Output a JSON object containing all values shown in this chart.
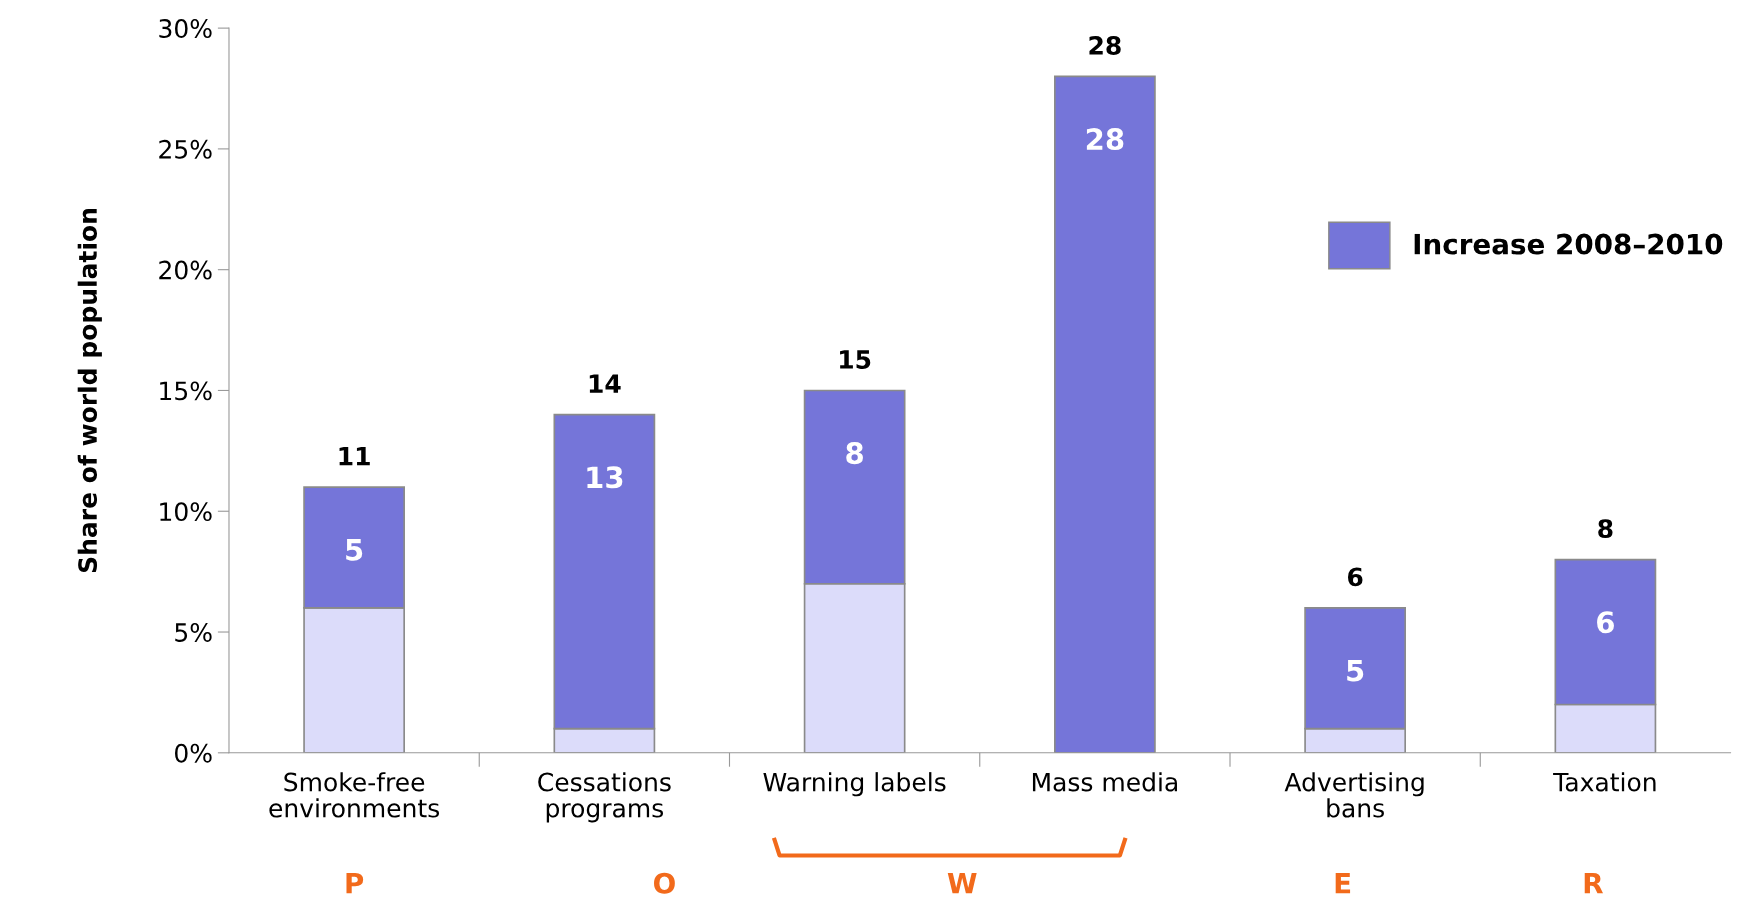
{
  "chart_data": {
    "type": "bar",
    "stacked": true,
    "ylabel": "Share of world population",
    "categories": [
      "Smoke-free environments",
      "Cessations programs",
      "Warning labels",
      "Mass media",
      "Advertising bans",
      "Taxation"
    ],
    "series": [
      {
        "color": "#dcdcfa",
        "values": [
          6,
          1,
          7,
          0,
          1,
          2
        ]
      },
      {
        "name": "Increase 2008–2010",
        "color": "#7575d9",
        "values": [
          5,
          13,
          8,
          28,
          5,
          6
        ],
        "value_labels": [
          "5",
          "13",
          "8",
          "28",
          "5",
          "6"
        ]
      }
    ],
    "totals": [
      "11",
      "14",
      "15",
      "28",
      "6",
      "8"
    ],
    "ylim": [
      0,
      30
    ],
    "yticks": [
      {
        "value": 0,
        "label": "0%"
      },
      {
        "value": 5,
        "label": "5%"
      },
      {
        "value": 10,
        "label": "10%"
      },
      {
        "value": 15,
        "label": "15%"
      },
      {
        "value": 20,
        "label": "20%"
      },
      {
        "value": 25,
        "label": "25%"
      },
      {
        "value": 30,
        "label": "30%"
      }
    ],
    "grid": false,
    "legend": "right",
    "annotations": [
      "P",
      "O",
      "W",
      "E",
      "R"
    ]
  }
}
